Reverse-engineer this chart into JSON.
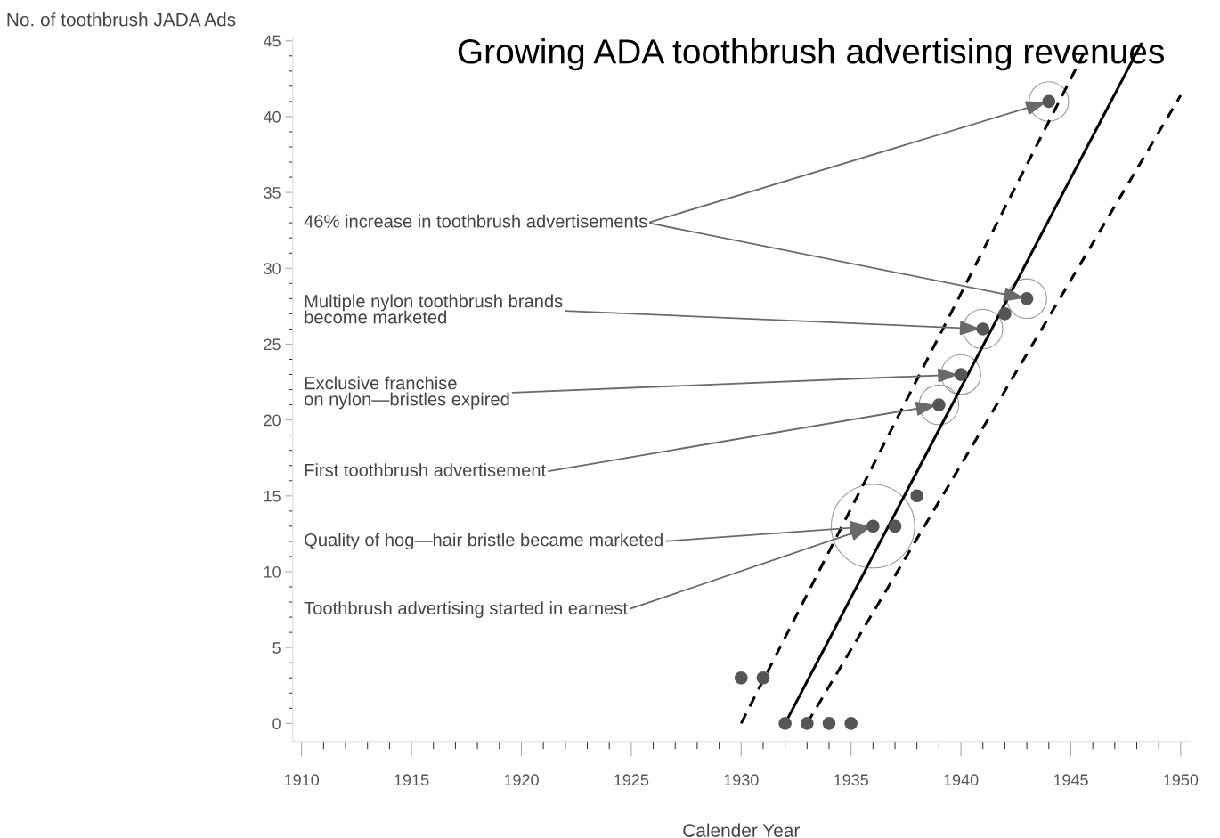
{
  "chart_data": {
    "type": "scatter",
    "title": "Growing ADA toothbrush advertising revenues",
    "xlabel": "Calender Year",
    "ylabel": "No. of toothbrush JADA Ads",
    "series": [
      {
        "color": "#555555",
        "marker": "circle",
        "x": [
          1930,
          1931,
          1932,
          1933,
          1934,
          1935,
          1936,
          1937,
          1938,
          1939,
          1940,
          1941,
          1942,
          1943,
          1944
        ],
        "values": [
          3,
          3,
          0,
          0,
          0,
          0,
          13,
          13,
          15,
          21,
          23,
          26,
          27,
          28,
          41
        ]
      },
      {
        "type": "line",
        "color": "#000000",
        "line_style": "solid",
        "x": [
          1932,
          1948.2
        ],
        "values": [
          0,
          44.8
        ]
      },
      {
        "type": "line",
        "color": "#000000",
        "line_style": "dashed",
        "x": [
          1930,
          1945.6
        ],
        "values": [
          0,
          44.2
        ]
      },
      {
        "type": "line",
        "color": "#000000",
        "line_style": "dashed",
        "x": [
          1933,
          1950
        ],
        "values": [
          0,
          41.4
        ]
      }
    ],
    "xlim": [
      1909.6,
      1950.4
    ],
    "ylim": [
      -1.2,
      45.2
    ],
    "xticks": [
      1910,
      {
        "value": 1911,
        "label": null
      },
      {
        "value": 1912,
        "label": null
      },
      {
        "value": 1913,
        "label": null
      },
      {
        "value": 1914,
        "label": null
      },
      1915,
      {
        "value": 1916,
        "label": null
      },
      {
        "value": 1917,
        "label": null
      },
      {
        "value": 1918,
        "label": null
      },
      {
        "value": 1919,
        "label": null
      },
      1920,
      {
        "value": 1921,
        "label": null
      },
      {
        "value": 1922,
        "label": null
      },
      {
        "value": 1923,
        "label": null
      },
      {
        "value": 1924,
        "label": null
      },
      1925,
      {
        "value": 1926,
        "label": null
      },
      {
        "value": 1927,
        "label": null
      },
      {
        "value": 1928,
        "label": null
      },
      {
        "value": 1929,
        "label": null
      },
      1930,
      {
        "value": 1931,
        "label": null
      },
      {
        "value": 1932,
        "label": null
      },
      {
        "value": 1933,
        "label": null
      },
      {
        "value": 1934,
        "label": null
      },
      1935,
      {
        "value": 1936,
        "label": null
      },
      {
        "value": 1937,
        "label": null
      },
      {
        "value": 1938,
        "label": null
      },
      {
        "value": 1939,
        "label": null
      },
      1940,
      {
        "value": 1941,
        "label": null
      },
      {
        "value": 1942,
        "label": null
      },
      {
        "value": 1943,
        "label": null
      },
      {
        "value": 1944,
        "label": null
      },
      1945,
      {
        "value": 1946,
        "label": null
      },
      {
        "value": 1947,
        "label": null
      },
      {
        "value": 1948,
        "label": null
      },
      {
        "value": 1949,
        "label": null
      },
      1950
    ],
    "yticks": [
      0,
      {
        "value": 1,
        "label": null
      },
      {
        "value": 2,
        "label": null
      },
      {
        "value": 3,
        "label": null
      },
      {
        "value": 4,
        "label": null
      },
      5,
      {
        "value": 6,
        "label": null
      },
      {
        "value": 7,
        "label": null
      },
      {
        "value": 8,
        "label": null
      },
      {
        "value": 9,
        "label": null
      },
      10,
      {
        "value": 11,
        "label": null
      },
      {
        "value": 12,
        "label": null
      },
      {
        "value": 13,
        "label": null
      },
      {
        "value": 14,
        "label": null
      },
      15,
      {
        "value": 16,
        "label": null
      },
      {
        "value": 17,
        "label": null
      },
      {
        "value": 18,
        "label": null
      },
      {
        "value": 19,
        "label": null
      },
      20,
      {
        "value": 21,
        "label": null
      },
      {
        "value": 22,
        "label": null
      },
      {
        "value": 23,
        "label": null
      },
      {
        "value": 24,
        "label": null
      },
      25,
      {
        "value": 26,
        "label": null
      },
      {
        "value": 27,
        "label": null
      },
      {
        "value": 28,
        "label": null
      },
      {
        "value": 29,
        "label": null
      },
      30,
      {
        "value": 31,
        "label": null
      },
      {
        "value": 32,
        "label": null
      },
      {
        "value": 33,
        "label": null
      },
      {
        "value": 34,
        "label": null
      },
      35,
      {
        "value": 36,
        "label": null
      },
      {
        "value": 37,
        "label": null
      },
      {
        "value": 38,
        "label": null
      },
      {
        "value": 39,
        "label": null
      },
      40,
      {
        "value": 41,
        "label": null
      },
      {
        "value": 42,
        "label": null
      },
      {
        "value": 43,
        "label": null
      },
      {
        "value": 44,
        "label": null
      },
      45
    ],
    "grid": false,
    "legend": false,
    "annotations": [
      {
        "text": "46% increase in toothbrush advertisements",
        "x": 1944,
        "y": 41
      },
      {
        "text": "Multiple nylon toothbrush brands\nbecome marketed",
        "x": 1941,
        "y": 26
      },
      {
        "text": "Exclusive franchise\non nylon—bristles expired",
        "x": 1940,
        "y": 23
      },
      {
        "text": "First toothbrush advertisement",
        "x": 1939,
        "y": 21
      },
      {
        "text": "Quality of hog—hair bristle became marketed",
        "x": 1936,
        "y": 13
      },
      {
        "text": "Toothbrush advertising started in earnest",
        "x": 1936,
        "y": 13
      }
    ]
  }
}
